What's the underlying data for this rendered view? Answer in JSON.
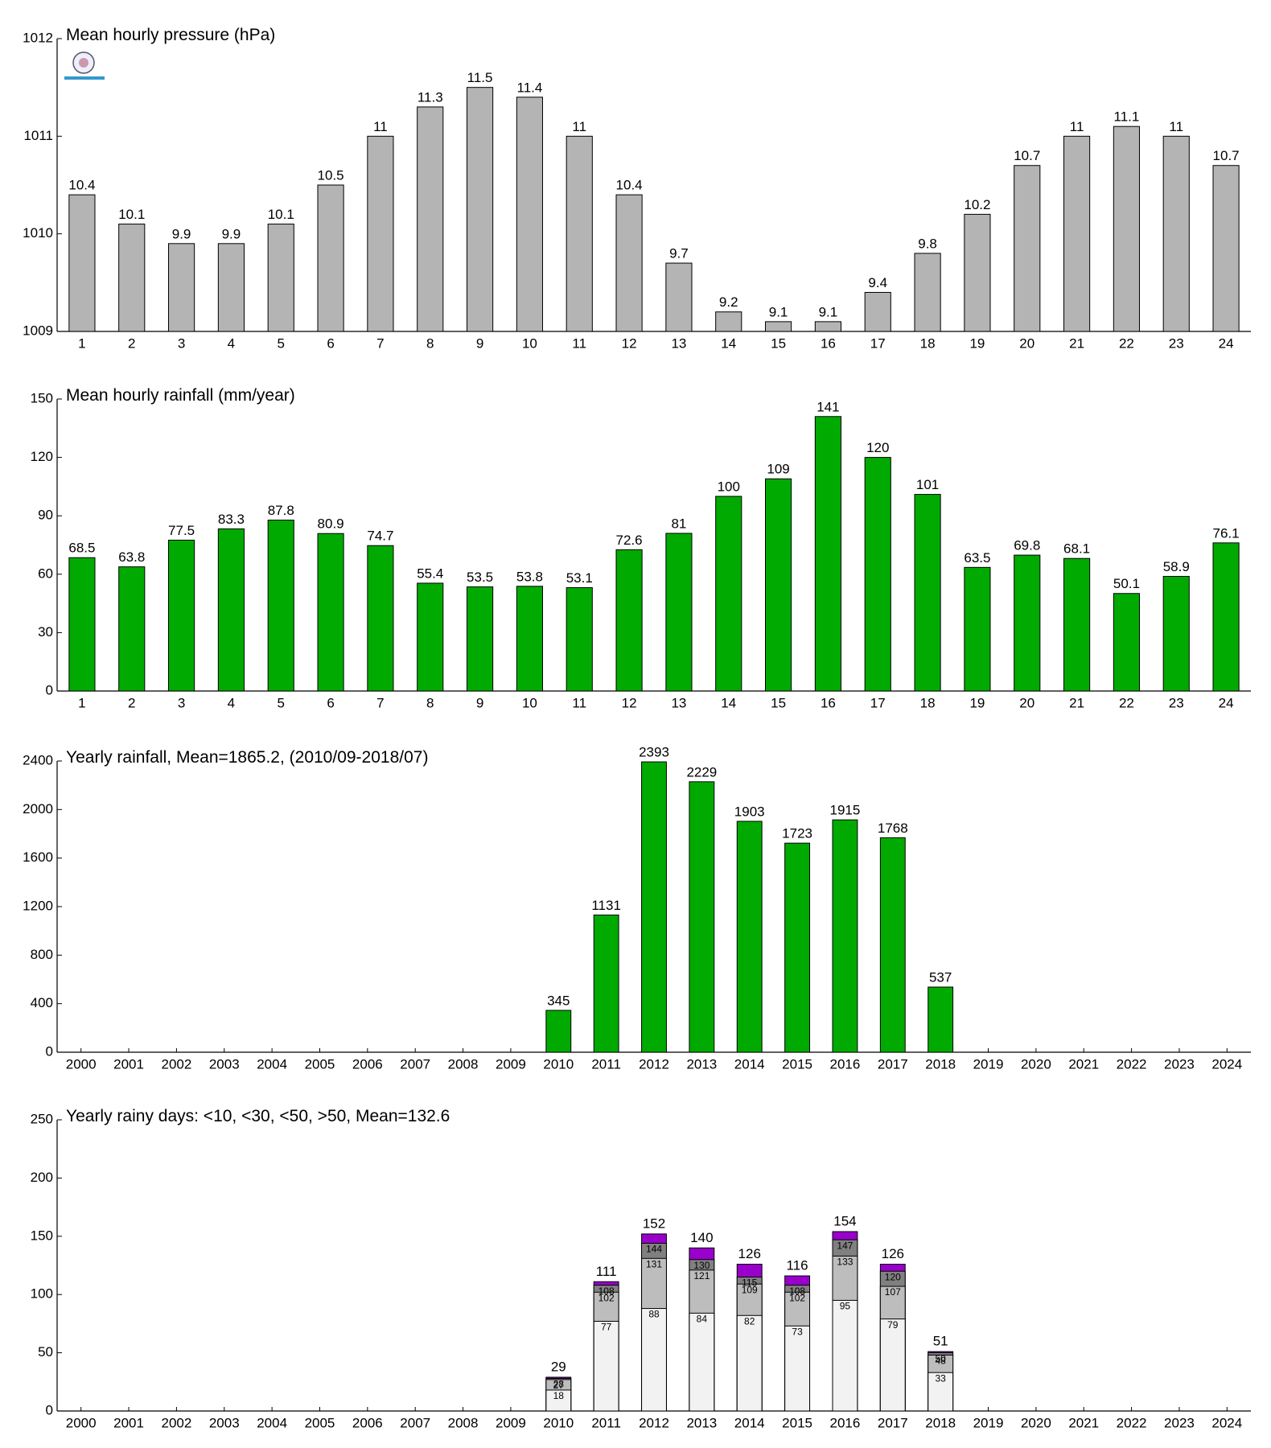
{
  "chart_data": [
    {
      "type": "bar",
      "title": "Mean hourly pressure (hPa)",
      "categories": [
        1,
        2,
        3,
        4,
        5,
        6,
        7,
        8,
        9,
        10,
        11,
        12,
        13,
        14,
        15,
        16,
        17,
        18,
        19,
        20,
        21,
        22,
        23,
        24
      ],
      "values": [
        1010.4,
        1010.1,
        1009.9,
        1009.9,
        1010.1,
        1010.5,
        1011,
        1011.3,
        1011.5,
        1011.4,
        1011,
        1010.4,
        1009.7,
        1009.2,
        1009.1,
        1009.1,
        1009.4,
        1009.8,
        1010.2,
        1010.7,
        1011,
        1011.1,
        1011,
        1010.7
      ],
      "value_labels": [
        "10.4",
        "10.1",
        "9.9",
        "9.9",
        "10.1",
        "10.5",
        "11",
        "11.3",
        "11.5",
        "11.4",
        "11",
        "10.4",
        "9.7",
        "9.2",
        "9.1",
        "9.1",
        "9.4",
        "9.8",
        "10.2",
        "10.7",
        "11",
        "11.1",
        "11",
        "10.7"
      ],
      "color": "#b4b4b4",
      "ylim": [
        1009,
        1012
      ],
      "yticks": [
        1009,
        1010,
        1011,
        1012
      ]
    },
    {
      "type": "bar",
      "title": "Mean hourly rainfall (mm/year)",
      "categories": [
        1,
        2,
        3,
        4,
        5,
        6,
        7,
        8,
        9,
        10,
        11,
        12,
        13,
        14,
        15,
        16,
        17,
        18,
        19,
        20,
        21,
        22,
        23,
        24
      ],
      "values": [
        68.5,
        63.8,
        77.5,
        83.3,
        87.8,
        80.9,
        74.7,
        55.4,
        53.5,
        53.8,
        53.1,
        72.6,
        81,
        100,
        109,
        141,
        120,
        101,
        63.5,
        69.8,
        68.1,
        50.1,
        58.9,
        76.1
      ],
      "color": "#00aa00",
      "ylim": [
        0,
        150
      ],
      "yticks": [
        0,
        30,
        60,
        90,
        120,
        150
      ]
    },
    {
      "type": "bar",
      "title": "Yearly rainfall, Mean=1865.2, (2010/09-2018/07)",
      "categories": [
        "2000",
        "2001",
        "2002",
        "2003",
        "2004",
        "2005",
        "2006",
        "2007",
        "2008",
        "2009",
        "2010",
        "2011",
        "2012",
        "2013",
        "2014",
        "2015",
        "2016",
        "2017",
        "2018",
        "2019",
        "2020",
        "2021",
        "2022",
        "2023",
        "2024"
      ],
      "values": [
        null,
        null,
        null,
        null,
        null,
        null,
        null,
        null,
        null,
        null,
        345,
        1131,
        2393,
        2229,
        1903,
        1723,
        1915,
        1768,
        537,
        null,
        null,
        null,
        null,
        null,
        null
      ],
      "color": "#00aa00",
      "ylim": [
        0,
        2400
      ],
      "yticks": [
        0,
        400,
        800,
        1200,
        1600,
        2000,
        2400
      ]
    },
    {
      "type": "overlap-bar",
      "title": "Yearly rainy days: <10, <30, <50, >50, Mean=132.6",
      "categories": [
        "2000",
        "2001",
        "2002",
        "2003",
        "2004",
        "2005",
        "2006",
        "2007",
        "2008",
        "2009",
        "2010",
        "2011",
        "2012",
        "2013",
        "2014",
        "2015",
        "2016",
        "2017",
        "2018",
        "2019",
        "2020",
        "2021",
        "2022",
        "2023",
        "2024"
      ],
      "series": [
        {
          "color": "#f2f2f2",
          "values": [
            null,
            null,
            null,
            null,
            null,
            null,
            null,
            null,
            null,
            null,
            18,
            77,
            88,
            84,
            82,
            73,
            95,
            79,
            33,
            null,
            null,
            null,
            null,
            null,
            null
          ]
        },
        {
          "color": "#bdbdbd",
          "values": [
            null,
            null,
            null,
            null,
            null,
            null,
            null,
            null,
            null,
            null,
            27,
            102,
            131,
            121,
            109,
            102,
            133,
            107,
            48,
            null,
            null,
            null,
            null,
            null,
            null
          ]
        },
        {
          "color": "#808080",
          "values": [
            null,
            null,
            null,
            null,
            null,
            null,
            null,
            null,
            null,
            null,
            28,
            108,
            144,
            130,
            115,
            108,
            147,
            120,
            50,
            null,
            null,
            null,
            null,
            null,
            null
          ]
        },
        {
          "color": "#9900cc",
          "values": [
            null,
            null,
            null,
            null,
            null,
            null,
            null,
            null,
            null,
            null,
            29,
            111,
            152,
            140,
            126,
            116,
            154,
            126,
            51,
            null,
            null,
            null,
            null,
            null,
            null
          ]
        }
      ],
      "ylim": [
        0,
        250
      ],
      "yticks": [
        0,
        50,
        100,
        150,
        200,
        250
      ]
    }
  ]
}
